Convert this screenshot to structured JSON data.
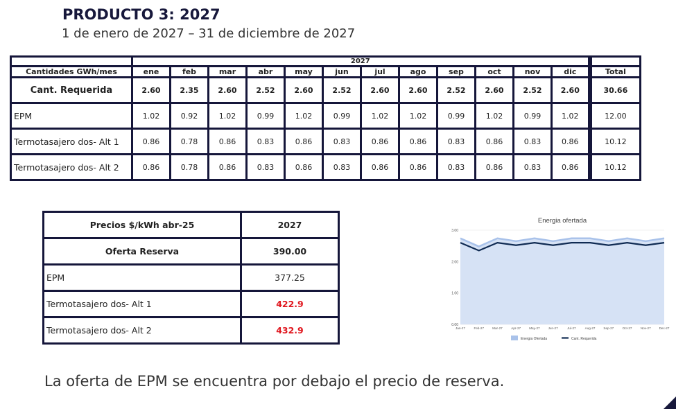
{
  "header": {
    "title": "PRODUCTO 3: 2027",
    "subtitle": "1 de enero de 2027  – 31 de diciembre de 2027"
  },
  "quantities_table": {
    "year": "2027",
    "row_header": "Cantidades GWh/mes",
    "months": [
      "ene",
      "feb",
      "mar",
      "abr",
      "may",
      "jun",
      "jul",
      "ago",
      "sep",
      "oct",
      "nov",
      "dic"
    ],
    "total_label": "Total",
    "rows": [
      {
        "label": "Cant. Requerida",
        "values": [
          "2.60",
          "2.35",
          "2.60",
          "2.52",
          "2.60",
          "2.52",
          "2.60",
          "2.60",
          "2.52",
          "2.60",
          "2.52",
          "2.60"
        ],
        "total": "30.66"
      },
      {
        "label": "EPM",
        "values": [
          "1.02",
          "0.92",
          "1.02",
          "0.99",
          "1.02",
          "0.99",
          "1.02",
          "1.02",
          "0.99",
          "1.02",
          "0.99",
          "1.02"
        ],
        "total": "12.00"
      },
      {
        "label": "Termotasajero dos- Alt 1",
        "values": [
          "0.86",
          "0.78",
          "0.86",
          "0.83",
          "0.86",
          "0.83",
          "0.86",
          "0.86",
          "0.83",
          "0.86",
          "0.83",
          "0.86"
        ],
        "total": "10.12"
      },
      {
        "label": "Termotasajero dos- Alt  2",
        "values": [
          "0.86",
          "0.78",
          "0.86",
          "0.83",
          "0.86",
          "0.83",
          "0.86",
          "0.86",
          "0.83",
          "0.86",
          "0.83",
          "0.86"
        ],
        "total": "10.12"
      }
    ]
  },
  "prices_table": {
    "header_label": "Precios $/kWh abr-25",
    "header_year": "2027",
    "rows": [
      {
        "label": "Oferta Reserva",
        "value": "390.00"
      },
      {
        "label": "EPM",
        "value": "377.25"
      },
      {
        "label": "Termotasajero dos- Alt 1",
        "value": "422.9"
      },
      {
        "label": "Termotasajero dos- Alt  2",
        "value": "432.9"
      }
    ]
  },
  "colors": {
    "dark_navy": "#15163a",
    "price_red": "#e0161e",
    "area_fill": "#d6e2f5",
    "area_stroke": "#a9c2ea",
    "line": "#0f2a52"
  },
  "chart_data": {
    "type": "area",
    "title": "Energia ofertada",
    "categories": [
      "Jan-27",
      "Feb-27",
      "Mar-27",
      "Apr-27",
      "May-27",
      "Jun-27",
      "Jul-27",
      "Aug-27",
      "Sep-27",
      "Oct-27",
      "Nov-27",
      "Dec-27"
    ],
    "series": [
      {
        "name": "Energia Ofertada",
        "type": "area",
        "values": [
          2.74,
          2.48,
          2.74,
          2.65,
          2.74,
          2.65,
          2.74,
          2.74,
          2.65,
          2.74,
          2.65,
          2.74
        ]
      },
      {
        "name": "Cant. Requerida",
        "type": "line",
        "values": [
          2.6,
          2.35,
          2.6,
          2.52,
          2.6,
          2.52,
          2.6,
          2.6,
          2.52,
          2.6,
          2.52,
          2.6
        ]
      }
    ],
    "ylim": [
      0,
      3
    ],
    "yticks": [
      "0.00",
      "1.00",
      "2.00",
      "3.00"
    ],
    "legend": "bottom"
  },
  "conclusion": "La oferta de EPM se encuentra por debajo el precio de reserva."
}
